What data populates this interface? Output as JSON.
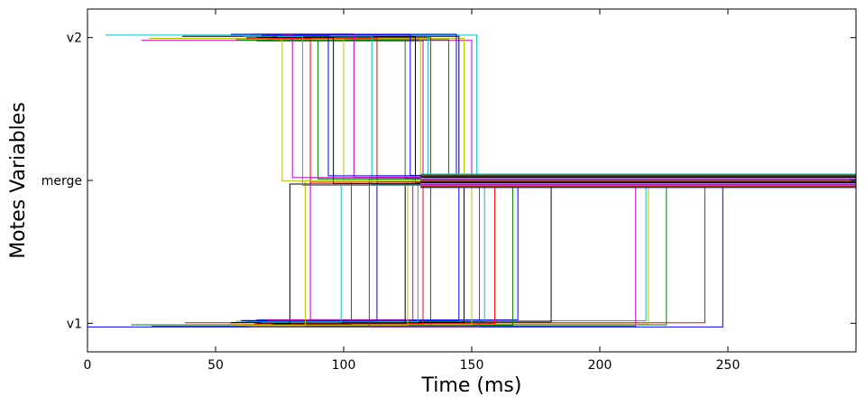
{
  "chart_data": {
    "type": "line",
    "step": true,
    "xlabel": "Time (ms)",
    "ylabel": "Motes Variables",
    "xlim": [
      0,
      300
    ],
    "ylim": [
      -0.2,
      2.2
    ],
    "x_ticks": [
      0,
      50,
      100,
      150,
      200,
      250
    ],
    "x_tick_labels": [
      "0",
      "50",
      "100",
      "150",
      "200",
      "250"
    ],
    "y_ticks": [
      0,
      1,
      2
    ],
    "y_tick_labels": [
      "v1",
      "merge",
      "v2"
    ],
    "grid": false,
    "legend": "none",
    "colors": [
      "#0000ff",
      "#008000",
      "#ff0000",
      "#00bfbf",
      "#bf00bf",
      "#bfbf00",
      "#000000"
    ],
    "traces_from_v1": [
      {
        "t0": 0,
        "t1": 248,
        "t_end": 300
      },
      {
        "t0": 17,
        "t1": 226,
        "t_end": 300
      },
      {
        "t0": 38,
        "t1": 241,
        "t_end": 300
      },
      {
        "t0": 60,
        "t1": 218,
        "t_end": 300
      },
      {
        "t0": 25,
        "t1": 214,
        "t_end": 300
      },
      {
        "t0": 55,
        "t1": 219,
        "t_end": 300
      },
      {
        "t0": 72,
        "t1": 181,
        "t_end": 300
      },
      {
        "t0": 66,
        "t1": 168,
        "t_end": 300
      },
      {
        "t0": 62,
        "t1": 166,
        "t_end": 300
      },
      {
        "t0": 70,
        "t1": 159,
        "t_end": 300
      },
      {
        "t0": 58,
        "t1": 155,
        "t_end": 300
      },
      {
        "t0": 64,
        "t1": 153,
        "t_end": 300
      },
      {
        "t0": 68,
        "t1": 150,
        "t_end": 300
      },
      {
        "t0": 56,
        "t1": 147,
        "t_end": 300
      },
      {
        "t0": 60,
        "t1": 145,
        "t_end": 300
      },
      {
        "t0": 72,
        "t1": 134,
        "t_end": 300
      },
      {
        "t0": 65,
        "t1": 131,
        "t_end": 300
      },
      {
        "t0": 62,
        "t1": 129,
        "t_end": 300
      },
      {
        "t0": 70,
        "t1": 127,
        "t_end": 300
      },
      {
        "t0": 58,
        "t1": 125,
        "t_end": 300
      },
      {
        "t0": 66,
        "t1": 124,
        "t_end": 300
      },
      {
        "t0": 60,
        "t1": 113,
        "t_end": 300
      },
      {
        "t0": 64,
        "t1": 110,
        "t_end": 300
      },
      {
        "t0": 72,
        "t1": 103,
        "t_end": 300
      },
      {
        "t0": 68,
        "t1": 99,
        "t_end": 300
      },
      {
        "t0": 70,
        "t1": 87,
        "t_end": 300
      },
      {
        "t0": 62,
        "t1": 85,
        "t_end": 300
      },
      {
        "t0": 73,
        "t1": 79,
        "t_end": 300
      }
    ],
    "traces_from_v2": [
      {
        "t0": 7,
        "t1": 152,
        "t_end": 300
      },
      {
        "t0": 21,
        "t1": 150,
        "t_end": 300
      },
      {
        "t0": 24,
        "t1": 147,
        "t_end": 300
      },
      {
        "t0": 37,
        "t1": 145,
        "t_end": 300
      },
      {
        "t0": 56,
        "t1": 144,
        "t_end": 300
      },
      {
        "t0": 58,
        "t1": 141,
        "t_end": 300
      },
      {
        "t0": 62,
        "t1": 134,
        "t_end": 300
      },
      {
        "t0": 64,
        "t1": 133,
        "t_end": 300
      },
      {
        "t0": 66,
        "t1": 131,
        "t_end": 300
      },
      {
        "t0": 70,
        "t1": 130,
        "t_end": 300
      },
      {
        "t0": 72,
        "t1": 128,
        "t_end": 300
      },
      {
        "t0": 72,
        "t1": 126,
        "t_end": 300
      },
      {
        "t0": 60,
        "t1": 124,
        "t_end": 300
      },
      {
        "t0": 62,
        "t1": 113,
        "t_end": 300
      },
      {
        "t0": 61,
        "t1": 111,
        "t_end": 300
      },
      {
        "t0": 64,
        "t1": 104,
        "t_end": 300
      },
      {
        "t0": 72,
        "t1": 100,
        "t_end": 300
      },
      {
        "t0": 66,
        "t1": 96,
        "t_end": 300
      },
      {
        "t0": 68,
        "t1": 94,
        "t_end": 300
      },
      {
        "t0": 70,
        "t1": 90,
        "t_end": 300
      },
      {
        "t0": 72,
        "t1": 87,
        "t_end": 300
      },
      {
        "t0": 74,
        "t1": 84,
        "t_end": 300
      },
      {
        "t0": 76,
        "t1": 80,
        "t_end": 300
      },
      {
        "t0": 75,
        "t1": 76,
        "t_end": 300
      }
    ]
  }
}
